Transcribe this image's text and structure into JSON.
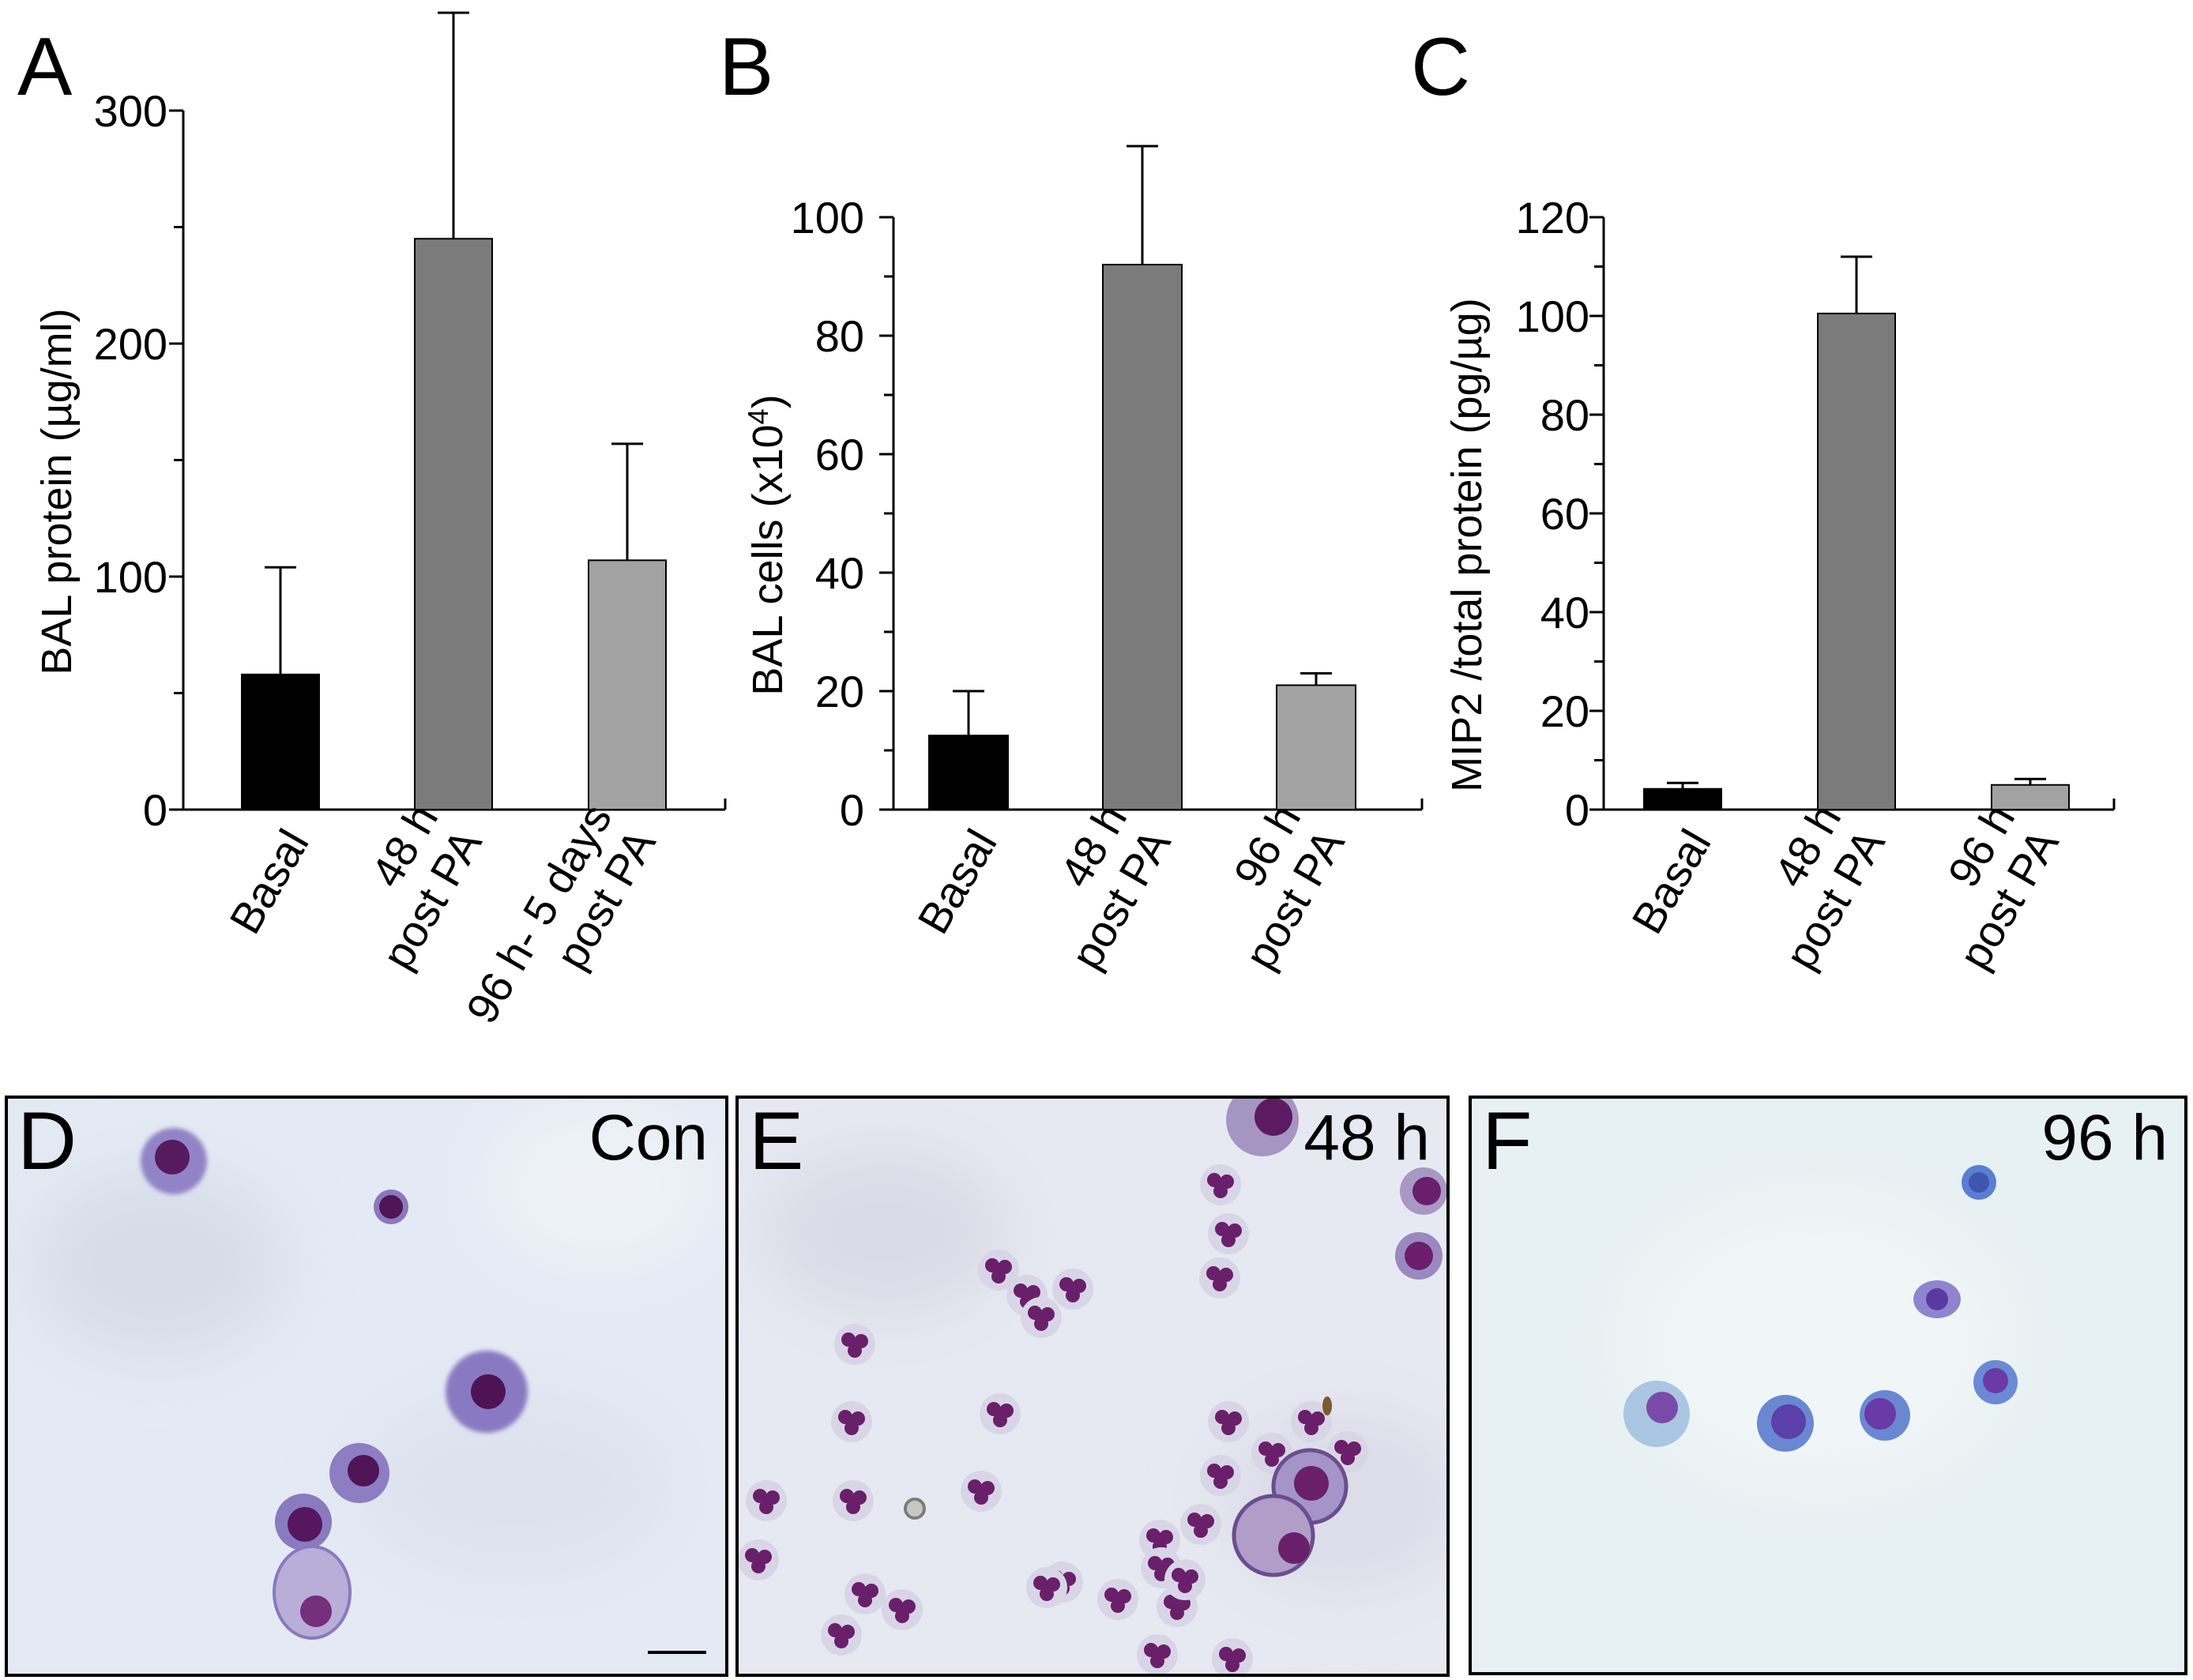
{
  "chart_data": [
    {
      "panel": "A",
      "type": "bar",
      "ylabel": "BAL protein  (µg/ml)",
      "yticks": [
        0,
        100,
        200,
        300
      ],
      "ylim": [
        0,
        300
      ],
      "categories": [
        [
          "Basal"
        ],
        [
          "48 h",
          "post PA"
        ],
        [
          "96 h- 5 days",
          "post PA"
        ]
      ],
      "values": [
        58,
        245,
        107
      ],
      "errors": [
        46,
        97,
        50
      ],
      "bar_colors": [
        "#000000",
        "#7b7b7b",
        "#a2a2a2"
      ]
    },
    {
      "panel": "B",
      "type": "bar",
      "ylabel": "BAL cells (x10",
      "ylabel_sup": "4",
      "ylabel_end": ")",
      "yticks": [
        0,
        20,
        40,
        60,
        80,
        100
      ],
      "ylim": [
        0,
        100
      ],
      "categories": [
        [
          "Basal"
        ],
        [
          "48 h",
          "post PA"
        ],
        [
          "96 h",
          "post PA"
        ]
      ],
      "values": [
        12.5,
        92,
        21
      ],
      "errors": [
        7.5,
        20,
        2
      ],
      "bar_colors": [
        "#000000",
        "#7b7b7b",
        "#a2a2a2"
      ]
    },
    {
      "panel": "C",
      "type": "bar",
      "ylabel": "MIP2 /total protein (pg/µg)",
      "yticks": [
        0,
        20,
        40,
        60,
        80,
        100,
        120
      ],
      "ylim": [
        0,
        120
      ],
      "categories": [
        [
          "Basal"
        ],
        [
          "48 h",
          "post PA"
        ],
        [
          "96 h",
          "post PA"
        ]
      ],
      "values": [
        4.2,
        100.5,
        5
      ],
      "errors": [
        1.2,
        11.5,
        1.2
      ],
      "bar_colors": [
        "#000000",
        "#7b7b7b",
        "#a2a2a2"
      ]
    }
  ],
  "micrographs": [
    {
      "letter": "D",
      "label": "Con",
      "background": "#e3eaf4"
    },
    {
      "letter": "E",
      "label": "48 h",
      "background": "#e6e8f2"
    },
    {
      "letter": "F",
      "label": "96 h",
      "background": "#e6f0f2"
    }
  ],
  "colors": {
    "cell_cytoplasm": "#8e7fc0",
    "cell_nucleus": "#5a1a60",
    "neutrophil_nucleus": "#6a1f6a"
  }
}
